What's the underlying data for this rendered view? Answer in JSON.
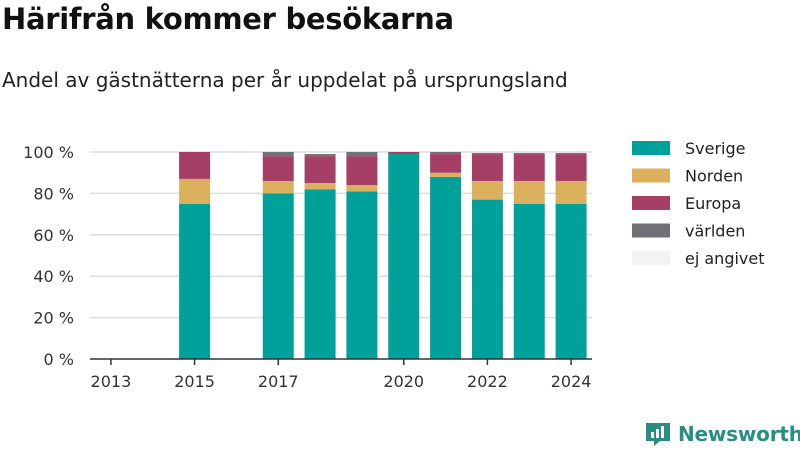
{
  "title": "Härifrån kommer besökarna",
  "subtitle": "Andel av gästnätterna per år uppdelat på ursprungsland",
  "brand": {
    "name": "Newsworthy",
    "icon": "newsworthy-logo-icon",
    "color": "#2a8d84"
  },
  "chart_data": {
    "type": "bar",
    "stacked": true,
    "title": "Härifrån kommer besökarna",
    "subtitle": "Andel av gästnätterna per år uppdelat på ursprungsland",
    "xlabel": "",
    "ylabel": "",
    "x": [
      2013,
      2014,
      2015,
      2016,
      2017,
      2018,
      2019,
      2020,
      2021,
      2022,
      2023,
      2024
    ],
    "x_tick_labels": [
      "2013",
      "2015",
      "2017",
      "2020",
      "2022",
      "2024"
    ],
    "x_tick_values": [
      2013,
      2015,
      2017,
      2020,
      2022,
      2024
    ],
    "ylim": [
      0,
      100
    ],
    "y_ticks": [
      0,
      20,
      40,
      60,
      80,
      100
    ],
    "y_tick_labels": [
      "0 %",
      "20 %",
      "40 %",
      "60 %",
      "80 %",
      "100 %"
    ],
    "grid": true,
    "legend_position": "right",
    "series": [
      {
        "name": "Sverige",
        "color": "#00a19a",
        "values": [
          null,
          null,
          75,
          null,
          80,
          82,
          81,
          99,
          88,
          77,
          75,
          75
        ]
      },
      {
        "name": "Norden",
        "color": "#dbb05c",
        "values": [
          null,
          null,
          12,
          null,
          6,
          3,
          3,
          0,
          2,
          9,
          11,
          11
        ]
      },
      {
        "name": "Europa",
        "color": "#a63f66",
        "values": [
          null,
          null,
          13,
          null,
          12,
          13,
          14,
          1,
          9,
          13,
          13,
          13
        ]
      },
      {
        "name": "världen",
        "color": "#707176",
        "values": [
          null,
          null,
          0,
          null,
          2,
          1,
          2,
          0,
          1,
          0.5,
          0.5,
          0.5
        ]
      },
      {
        "name": "ej angivet",
        "color": "#f3f3f3",
        "values": [
          null,
          null,
          0,
          null,
          0,
          0,
          0,
          0,
          0,
          0,
          0,
          0
        ]
      }
    ]
  }
}
